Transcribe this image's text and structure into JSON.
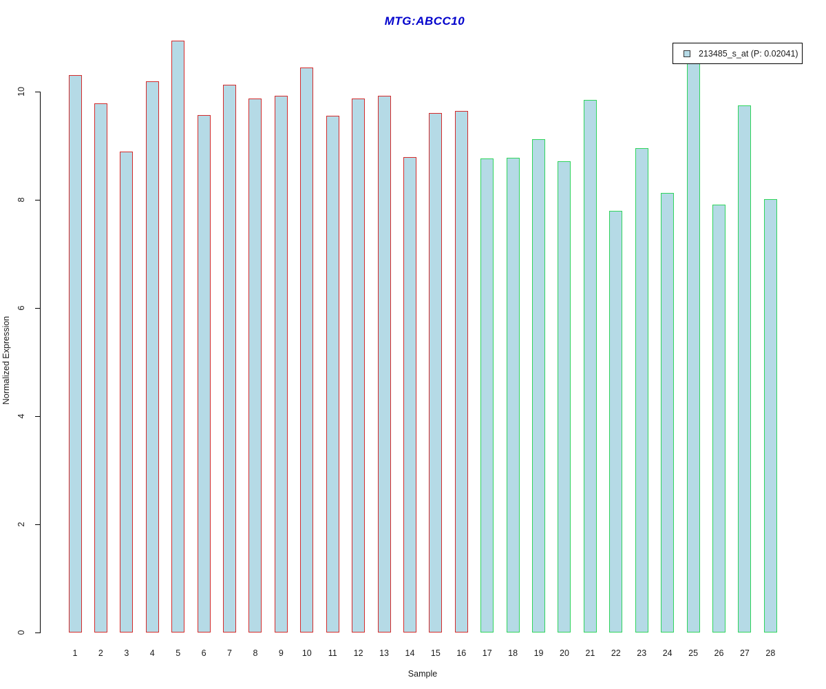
{
  "title": {
    "text": "MTG:ABCC10",
    "color": "#0000CC"
  },
  "legend": {
    "label": "213485_s_at (P: 0.02041)",
    "swatch_fill": "#B5DAE6",
    "swatch_border": "#333333"
  },
  "colors": {
    "bar_fill": "#B5DAE6",
    "group1_border": "#D42A2A",
    "group2_border": "#2FD45C",
    "axis": "#000000",
    "text": "#1A1A1A"
  },
  "chart_data": {
    "type": "bar",
    "title": "MTG:ABCC10",
    "xlabel": "Sample",
    "ylabel": "Normalized Expression",
    "ylim": [
      0,
      11
    ],
    "yticks": [
      0,
      2,
      4,
      6,
      8,
      10
    ],
    "grid": false,
    "legend_position": "top-right",
    "categories": [
      "1",
      "2",
      "3",
      "4",
      "5",
      "6",
      "7",
      "8",
      "9",
      "10",
      "11",
      "12",
      "13",
      "14",
      "15",
      "16",
      "17",
      "18",
      "19",
      "20",
      "21",
      "22",
      "23",
      "24",
      "25",
      "26",
      "27",
      "28"
    ],
    "series": [
      {
        "name": "213485_s_at (P: 0.02041)",
        "values": [
          10.3,
          9.78,
          8.89,
          10.19,
          10.94,
          9.57,
          10.13,
          9.87,
          9.92,
          10.45,
          9.55,
          9.87,
          9.92,
          8.79,
          9.61,
          9.64,
          8.76,
          8.78,
          9.12,
          8.71,
          9.85,
          7.8,
          8.95,
          8.13,
          10.6,
          7.91,
          9.75,
          8.01
        ]
      }
    ],
    "bar_groups": [
      {
        "first_category": "1",
        "last_category": "16",
        "border_color_key": "group1_border"
      },
      {
        "first_category": "17",
        "last_category": "28",
        "border_color_key": "group2_border"
      }
    ]
  }
}
